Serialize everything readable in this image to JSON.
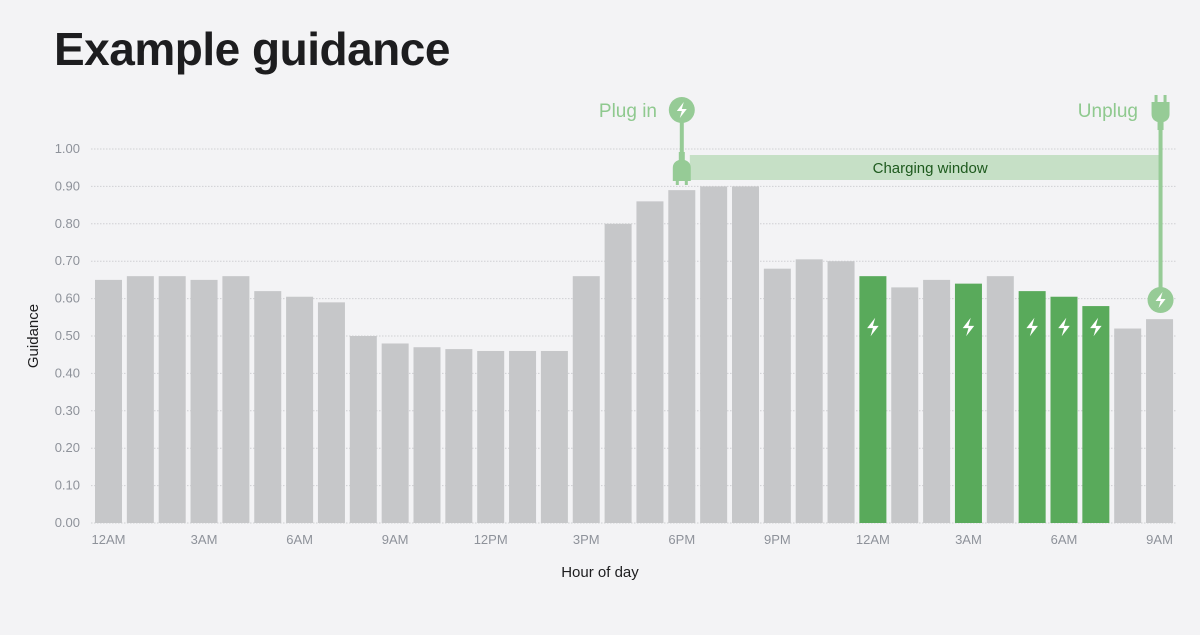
{
  "title": "Example guidance",
  "chart_data": {
    "type": "bar",
    "xlabel": "Hour of day",
    "ylabel": "Guidance",
    "ylim": [
      0,
      1.0
    ],
    "yticks": [
      "0.00",
      "0.10",
      "0.20",
      "0.30",
      "0.40",
      "0.50",
      "0.60",
      "0.70",
      "0.80",
      "0.90",
      "1.00"
    ],
    "grid": true,
    "xtick_labels": [
      {
        "index": 0,
        "label": "12AM"
      },
      {
        "index": 3,
        "label": "3AM"
      },
      {
        "index": 6,
        "label": "6AM"
      },
      {
        "index": 9,
        "label": "9AM"
      },
      {
        "index": 12,
        "label": "12PM"
      },
      {
        "index": 15,
        "label": "3PM"
      },
      {
        "index": 18,
        "label": "6PM"
      },
      {
        "index": 21,
        "label": "9PM"
      },
      {
        "index": 24,
        "label": "12AM"
      },
      {
        "index": 27,
        "label": "3AM"
      },
      {
        "index": 30,
        "label": "6AM"
      },
      {
        "index": 33,
        "label": "9AM"
      }
    ],
    "values": [
      0.65,
      0.66,
      0.66,
      0.65,
      0.66,
      0.62,
      0.605,
      0.59,
      0.5,
      0.48,
      0.47,
      0.465,
      0.46,
      0.46,
      0.46,
      0.66,
      0.8,
      0.86,
      0.89,
      0.9,
      0.9,
      0.68,
      0.705,
      0.7,
      0.66,
      0.63,
      0.65,
      0.64,
      0.66,
      0.62,
      0.605,
      0.58,
      0.52,
      0.545
    ],
    "charging_hours": [
      24,
      27,
      29,
      30,
      31
    ],
    "annotations": {
      "plug_in": {
        "label": "Plug in",
        "index": 18
      },
      "unplug": {
        "label": "Unplug",
        "index": 33
      },
      "window_label": "Charging window"
    },
    "colors": {
      "bar": "#c6c7c9",
      "charging": "#59aa5b",
      "annotation": "#96cb96",
      "window": "#c6e0c6",
      "window_text": "#1e5a1e"
    }
  }
}
